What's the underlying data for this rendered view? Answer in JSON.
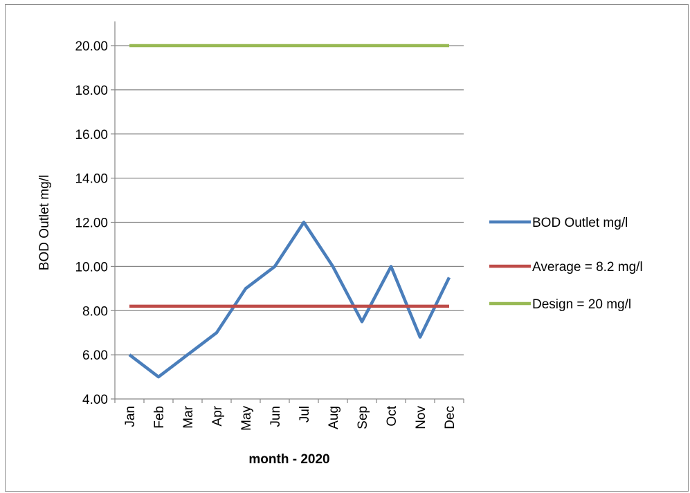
{
  "chart_data": {
    "type": "line",
    "title": "",
    "xlabel": "month - 2020",
    "ylabel": "BOD Outlet mg/l",
    "ylim": [
      4,
      20
    ],
    "yticks": [
      "4.00",
      "6.00",
      "8.00",
      "10.00",
      "12.00",
      "14.00",
      "16.00",
      "18.00",
      "20.00"
    ],
    "categories": [
      "Jan",
      "Feb",
      "Mar",
      "Apr",
      "May",
      "Jun",
      "Jul",
      "Aug",
      "Sep",
      "Oct",
      "Nov",
      "Dec"
    ],
    "grid": true,
    "legend_position": "right",
    "series": [
      {
        "name": "BOD Outlet mg/l",
        "color": "#4a7ebb",
        "values": [
          6,
          5,
          6,
          7,
          9,
          10,
          12,
          10,
          7.5,
          10,
          6.8,
          9.5
        ]
      },
      {
        "name": "Average = 8.2  mg/l",
        "color": "#be4b48",
        "values": [
          8.2,
          8.2,
          8.2,
          8.2,
          8.2,
          8.2,
          8.2,
          8.2,
          8.2,
          8.2,
          8.2,
          8.2
        ]
      },
      {
        "name": "Design = 20 mg/l",
        "color": "#98b954",
        "values": [
          20,
          20,
          20,
          20,
          20,
          20,
          20,
          20,
          20,
          20,
          20,
          20
        ]
      }
    ]
  }
}
